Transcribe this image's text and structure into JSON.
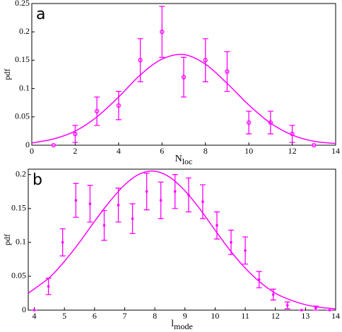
{
  "chart_data": [
    {
      "type": "scatter",
      "panel_label": "a",
      "ylabel": "pdf",
      "xlabel": {
        "text": "N",
        "sub": "loc"
      },
      "xlim": [
        0,
        14
      ],
      "xticks": [
        0,
        2,
        4,
        6,
        8,
        10,
        12,
        14
      ],
      "ylim": [
        0,
        0.25
      ],
      "yticks": [
        0,
        0.05,
        0.1,
        0.15,
        0.2,
        0.25
      ],
      "series": [
        {
          "style": "errorbar",
          "marker": "circle",
          "color": "#ff00ff",
          "x": [
            1,
            2,
            3,
            4,
            5,
            6,
            7,
            8,
            9,
            10,
            11,
            12,
            13
          ],
          "values": [
            0,
            0.02,
            0.06,
            0.07,
            0.15,
            0.2,
            0.12,
            0.15,
            0.13,
            0.04,
            0.04,
            0.02,
            0
          ],
          "errors": [
            0,
            0.015,
            0.025,
            0.025,
            0.038,
            0.045,
            0.035,
            0.038,
            0.035,
            0.02,
            0.02,
            0.015,
            0
          ]
        },
        {
          "style": "line",
          "color": "#ff00ff",
          "x": [
            0,
            1,
            2,
            3,
            4,
            5,
            6,
            7,
            8,
            9,
            10,
            11,
            12,
            13,
            14
          ],
          "values": [
            0.004,
            0.011,
            0.025,
            0.05,
            0.085,
            0.124,
            0.152,
            0.16,
            0.143,
            0.109,
            0.071,
            0.039,
            0.018,
            0.007,
            0.003
          ]
        }
      ]
    },
    {
      "type": "scatter",
      "panel_label": "b",
      "ylabel": "pdf",
      "xlabel": {
        "text": "l",
        "sub": "mode"
      },
      "xlim": [
        3.8,
        14
      ],
      "xticks": [
        4,
        5,
        6,
        7,
        8,
        9,
        10,
        11,
        12,
        13,
        14
      ],
      "ylim": [
        0,
        0.208
      ],
      "yticks": [
        0,
        0.05,
        0.1,
        0.15,
        0.2
      ],
      "series": [
        {
          "style": "errorbar",
          "marker": "dot",
          "color": "#ff00ff",
          "x": [
            4.0,
            4.47,
            4.94,
            5.38,
            5.85,
            6.32,
            6.79,
            7.26,
            7.73,
            8.2,
            8.67,
            9.12,
            9.59,
            10.06,
            10.53,
            11.0,
            11.46,
            11.93,
            12.4,
            12.87,
            13.34,
            13.8
          ],
          "values": [
            0,
            0.035,
            0.1,
            0.162,
            0.157,
            0.125,
            0.155,
            0.135,
            0.175,
            0.162,
            0.175,
            0.17,
            0.16,
            0.125,
            0.1,
            0.088,
            0.045,
            0.023,
            0.007,
            0,
            0.003,
            0
          ],
          "errors": [
            0,
            0.012,
            0.02,
            0.025,
            0.027,
            0.022,
            0.025,
            0.022,
            0.027,
            0.027,
            0.025,
            0.025,
            0.025,
            0.02,
            0.018,
            0.02,
            0.012,
            0.008,
            0.005,
            0,
            0.003,
            0
          ]
        },
        {
          "style": "line",
          "color": "#ff00ff",
          "x": [
            3.8,
            4.5,
            5,
            5.5,
            6,
            6.5,
            7,
            7.5,
            8,
            8.5,
            9,
            9.5,
            10,
            10.5,
            11,
            11.5,
            12,
            12.5,
            13,
            13.5,
            14
          ],
          "values": [
            0.025,
            0.048,
            0.072,
            0.1,
            0.131,
            0.16,
            0.185,
            0.201,
            0.205,
            0.196,
            0.176,
            0.149,
            0.118,
            0.088,
            0.062,
            0.041,
            0.025,
            0.015,
            0.008,
            0.004,
            0.002
          ]
        }
      ]
    }
  ]
}
